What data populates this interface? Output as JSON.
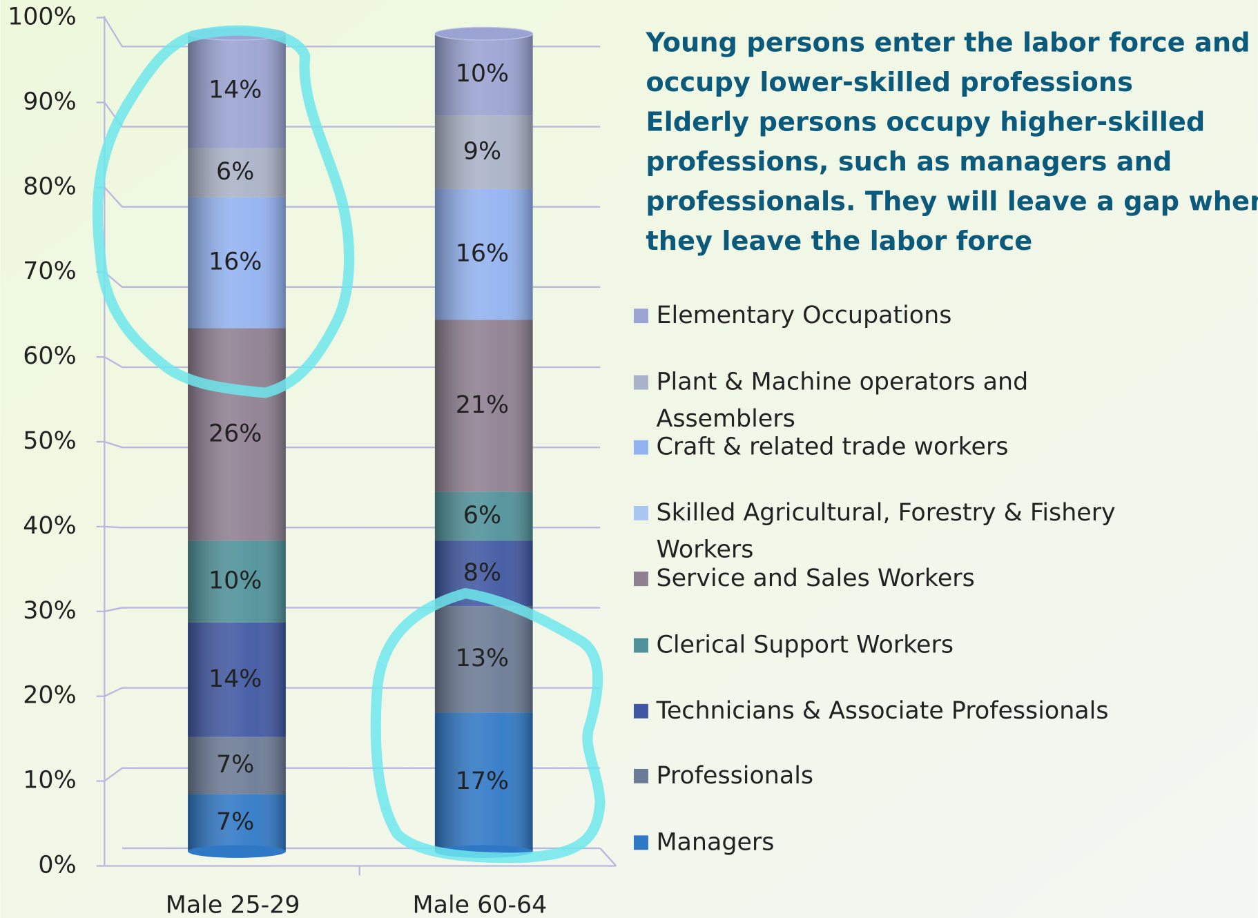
{
  "chart_data": {
    "type": "bar",
    "stacked": true,
    "title_lines": [
      "Young persons enter the labor force and",
      "occupy lower-skilled professions",
      "Elderly persons occupy higher-skilled",
      "professions, such as managers and",
      "professionals. They will leave a gap when",
      "they leave the labor force"
    ],
    "categories": [
      "Male 25-29",
      "Male 60-64"
    ],
    "ylim": [
      0,
      100
    ],
    "yticks": [
      {
        "value": 0,
        "label": "0%"
      },
      {
        "value": 10,
        "label": "10%"
      },
      {
        "value": 20,
        "label": "20%"
      },
      {
        "value": 30,
        "label": "30%"
      },
      {
        "value": 40,
        "label": "40%"
      },
      {
        "value": 50,
        "label": "50%"
      },
      {
        "value": 60,
        "label": "60%"
      },
      {
        "value": 70,
        "label": "70%"
      },
      {
        "value": 80,
        "label": "80%"
      },
      {
        "value": 90,
        "label": "90%"
      },
      {
        "value": 100,
        "label": "100%"
      }
    ],
    "grid": true,
    "legend": "right",
    "series": [
      {
        "name": "Managers",
        "color": "#2f78c6",
        "values": [
          7,
          17
        ],
        "value_labels": [
          "7%",
          "17%"
        ]
      },
      {
        "name": "Professionals",
        "color": "#6b7b95",
        "values": [
          7,
          13
        ],
        "value_labels": [
          "7%",
          "13%"
        ]
      },
      {
        "name": "Technicians & Associate Professionals",
        "color": "#3f57a2",
        "values": [
          14,
          8
        ],
        "value_labels": [
          "14%",
          "8%"
        ]
      },
      {
        "name": "Clerical Support Workers",
        "color": "#4f9199",
        "values": [
          10,
          6
        ],
        "value_labels": [
          "10%",
          "6%"
        ]
      },
      {
        "name": "Service and Sales Workers",
        "color": "#8e7f91",
        "values": [
          26,
          21
        ],
        "value_labels": [
          "26%",
          "21%"
        ]
      },
      {
        "name": "Skilled Agricultural, Forestry & Fishery Workers",
        "color": "#a8c6f0",
        "values": [
          0,
          0
        ],
        "value_labels": [
          null,
          null
        ]
      },
      {
        "name": "Craft & related trade workers",
        "color": "#92b2f0",
        "values": [
          16,
          16
        ],
        "value_labels": [
          "16%",
          "16%"
        ]
      },
      {
        "name": "Plant & Machine operators and Assemblers",
        "color": "#a9b2c6",
        "values": [
          6,
          9
        ],
        "value_labels": [
          "6%",
          "9%"
        ]
      },
      {
        "name": "Elementary Occupations",
        "color": "#9aa3d2",
        "values": [
          14,
          10
        ],
        "value_labels": [
          "14%",
          "10%"
        ]
      }
    ]
  }
}
